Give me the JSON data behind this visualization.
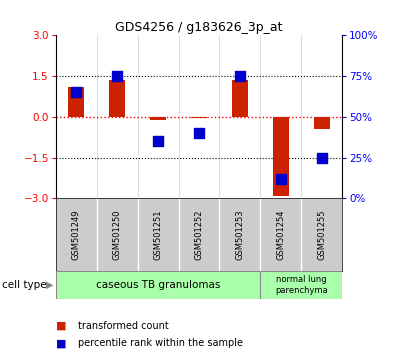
{
  "title": "GDS4256 / g183626_3p_at",
  "samples": [
    "GSM501249",
    "GSM501250",
    "GSM501251",
    "GSM501252",
    "GSM501253",
    "GSM501254",
    "GSM501255"
  ],
  "red_bars": [
    1.1,
    1.35,
    -0.12,
    -0.05,
    1.35,
    -2.9,
    -0.45
  ],
  "blue_dots_right": [
    65,
    75,
    35,
    40,
    75,
    12,
    25
  ],
  "ylim": [
    -3,
    3
  ],
  "yticks_left": [
    -3,
    -1.5,
    0,
    1.5,
    3
  ],
  "yticks_right": [
    0,
    25,
    50,
    75,
    100
  ],
  "groups": [
    {
      "label": "caseous TB granulomas",
      "span": [
        0,
        4
      ],
      "color": "#aaffaa"
    },
    {
      "label": "normal lung\nparenchyma",
      "span": [
        5,
        6
      ],
      "color": "#aaffaa"
    }
  ],
  "cell_type_label": "cell type",
  "legend_red": "transformed count",
  "legend_blue": "percentile rank within the sample",
  "bar_color": "#cc2200",
  "dot_color": "#0000cc",
  "bar_width": 0.4,
  "dot_size": 55,
  "background_color": "#ffffff",
  "plot_bg": "#ffffff",
  "tick_area_color": "#cccccc"
}
